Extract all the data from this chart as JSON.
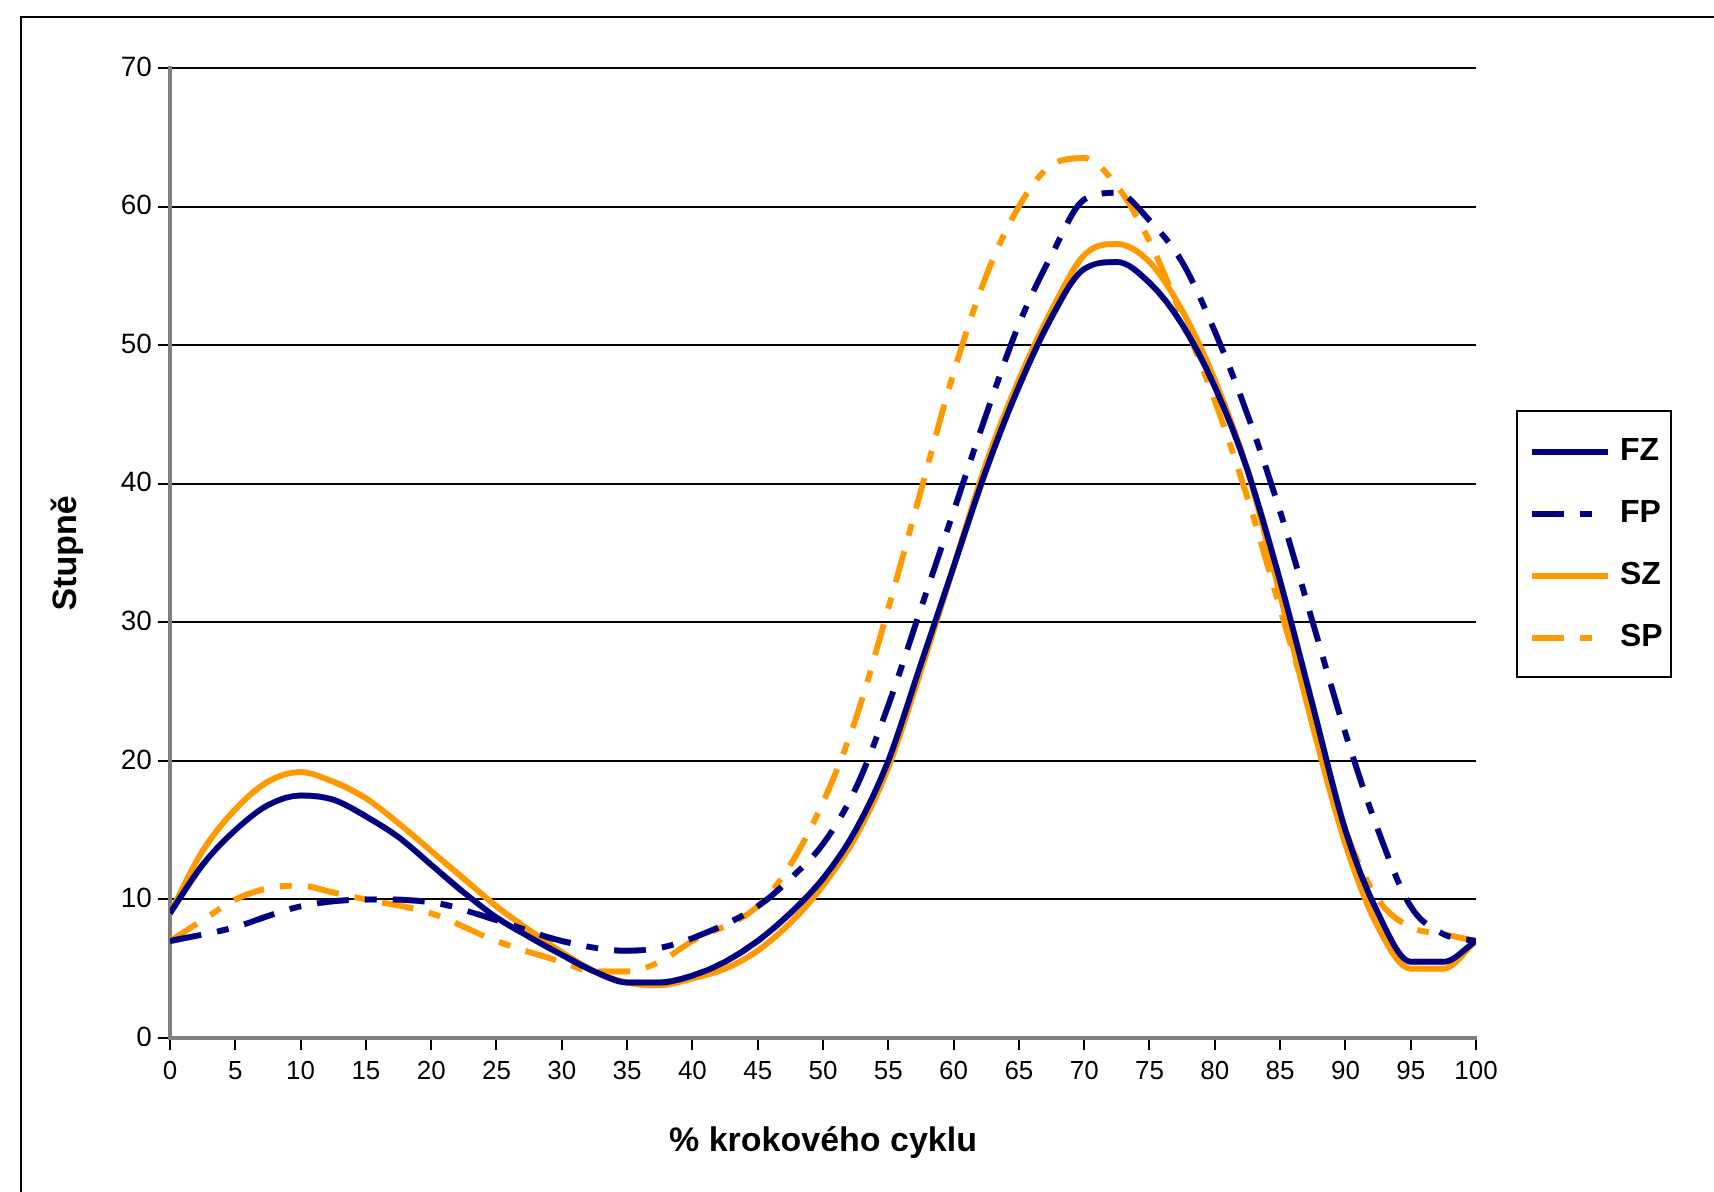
{
  "chart_data": {
    "type": "line",
    "xlabel": "% krokového cyklu",
    "ylabel": "Stupně",
    "xlim": [
      0,
      100
    ],
    "xticks": [
      0,
      5,
      10,
      15,
      20,
      25,
      30,
      35,
      40,
      45,
      50,
      55,
      60,
      65,
      70,
      75,
      80,
      85,
      90,
      95,
      100
    ],
    "ylim": [
      0,
      70
    ],
    "yticks": [
      0,
      10,
      20,
      30,
      40,
      50,
      60,
      70
    ],
    "grid": "y",
    "legend": "right",
    "marker": "none",
    "series": [
      {
        "name": "FZ",
        "color": "#000080",
        "line_style": "solid",
        "x": [
          0,
          2.5,
          5,
          7.5,
          10,
          12.5,
          15,
          17.5,
          20,
          22.5,
          25,
          27.5,
          30,
          32.5,
          35,
          37.5,
          40,
          42.5,
          45,
          47.5,
          50,
          52.5,
          55,
          57.5,
          60,
          62.5,
          65,
          67.5,
          70,
          72.5,
          75,
          77.5,
          80,
          82.5,
          85,
          87.5,
          90,
          92.5,
          95,
          97.5,
          100
        ],
        "values": [
          9,
          12.5,
          15,
          16.8,
          17.5,
          17.2,
          16,
          14.5,
          12.5,
          10.5,
          8.7,
          7.3,
          6,
          4.8,
          4,
          4,
          4.5,
          5.5,
          7,
          9,
          11.5,
          15,
          20,
          27,
          34,
          41,
          47,
          52,
          55.5,
          56,
          54.5,
          51.5,
          47,
          41,
          33,
          24,
          15,
          9,
          5.5,
          5.5,
          7
        ]
      },
      {
        "name": "FP",
        "color": "#000080",
        "line_style": "dashed",
        "x": [
          0,
          5,
          7.5,
          10,
          15,
          20,
          25,
          30,
          35,
          37.5,
          40,
          45,
          47.5,
          50,
          52.5,
          55,
          57.5,
          60,
          62.5,
          65,
          67.5,
          70,
          72.5,
          75,
          77.5,
          80,
          82.5,
          85,
          87.5,
          90,
          92.5,
          95,
          97.5,
          100
        ],
        "values": [
          7,
          8,
          8.8,
          9.5,
          10,
          9.8,
          8.5,
          7,
          6.3,
          6.5,
          7.2,
          9.5,
          11.5,
          14,
          18,
          24,
          31,
          38,
          45,
          51.5,
          56.5,
          60.5,
          61,
          59,
          56,
          51,
          45,
          38,
          30,
          22,
          15,
          9.5,
          7.5,
          7
        ]
      },
      {
        "name": "SZ",
        "color": "#ff9900",
        "line_style": "solid",
        "x": [
          0,
          2.5,
          5,
          7.5,
          10,
          12.5,
          15,
          17.5,
          20,
          22.5,
          25,
          27.5,
          30,
          32.5,
          35,
          37.5,
          40,
          42.5,
          45,
          47.5,
          50,
          52.5,
          55,
          57.5,
          60,
          62.5,
          65,
          67.5,
          70,
          72.5,
          75,
          77.5,
          80,
          82.5,
          85,
          87.5,
          90,
          92.5,
          95,
          97.5,
          100
        ],
        "values": [
          9,
          13.5,
          16.5,
          18.5,
          19.2,
          18.5,
          17.3,
          15.5,
          13.5,
          11.5,
          9.5,
          7.8,
          6.2,
          4.8,
          4,
          3.8,
          4.3,
          5,
          6.3,
          8.3,
          11,
          14.5,
          19.5,
          26.5,
          34,
          41.5,
          47.5,
          52.5,
          56.5,
          57.3,
          56,
          52.5,
          47.5,
          41,
          32,
          22.5,
          14,
          8,
          5,
          5,
          7
        ]
      },
      {
        "name": "SP",
        "color": "#ff9900",
        "line_style": "dashed",
        "x": [
          0,
          2.5,
          5,
          7.5,
          10,
          12.5,
          15,
          20,
          25,
          30,
          32.5,
          35,
          37.5,
          40,
          45,
          47.5,
          50,
          52.5,
          55,
          57.5,
          60,
          62.5,
          65,
          67.5,
          70,
          72.5,
          75,
          77.5,
          80,
          82.5,
          85,
          87.5,
          90,
          92.5,
          95,
          97.5,
          100
        ],
        "values": [
          7,
          8.5,
          10,
          10.8,
          11,
          10.5,
          10,
          9,
          7,
          5.5,
          4.8,
          4.8,
          5.5,
          7,
          9.5,
          12.5,
          17,
          23,
          31,
          39.5,
          48,
          55,
          60,
          63,
          63.5,
          61.5,
          57.5,
          52,
          46,
          39,
          31,
          23,
          15,
          10,
          8,
          7.5,
          7
        ]
      }
    ]
  }
}
